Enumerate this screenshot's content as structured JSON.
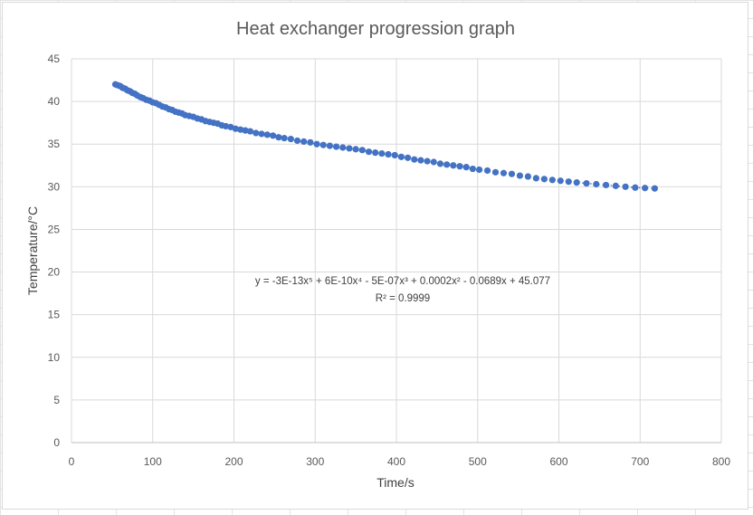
{
  "chart_data": {
    "type": "scatter",
    "title": "Heat exchanger progression graph",
    "xlabel": "Time/s",
    "ylabel": "Temperature/°C",
    "xlim": [
      0,
      800
    ],
    "ylim": [
      0,
      45
    ],
    "x_ticks": [
      "0",
      "100",
      "200",
      "300",
      "400",
      "500",
      "600",
      "700",
      "800"
    ],
    "y_ticks": [
      "0",
      "5",
      "10",
      "15",
      "20",
      "25",
      "30",
      "35",
      "40",
      "45"
    ],
    "grid": true,
    "marker_color": "#4472c4",
    "trendline": {
      "type": "polynomial",
      "order": 5,
      "equation": "y = -3E-13x⁵ + 6E-10x⁴ - 5E-07x³ + 0.0002x² - 0.0689x + 45.077",
      "r_squared": "R² = 0.9999",
      "line_style": "dotted"
    },
    "series": [
      {
        "points": [
          [
            54,
            42.0
          ],
          [
            57,
            41.9
          ],
          [
            60,
            41.8
          ],
          [
            63,
            41.6
          ],
          [
            66,
            41.5
          ],
          [
            69,
            41.3
          ],
          [
            72,
            41.2
          ],
          [
            75,
            41.0
          ],
          [
            78,
            40.9
          ],
          [
            81,
            40.7
          ],
          [
            85,
            40.5
          ],
          [
            88,
            40.4
          ],
          [
            92,
            40.2
          ],
          [
            96,
            40.1
          ],
          [
            100,
            39.9
          ],
          [
            104,
            39.8
          ],
          [
            108,
            39.6
          ],
          [
            112,
            39.4
          ],
          [
            116,
            39.3
          ],
          [
            120,
            39.1
          ],
          [
            124,
            39.0
          ],
          [
            128,
            38.8
          ],
          [
            132,
            38.7
          ],
          [
            136,
            38.6
          ],
          [
            140,
            38.4
          ],
          [
            145,
            38.3
          ],
          [
            150,
            38.2
          ],
          [
            155,
            38.0
          ],
          [
            160,
            37.9
          ],
          [
            165,
            37.7
          ],
          [
            170,
            37.6
          ],
          [
            175,
            37.5
          ],
          [
            180,
            37.4
          ],
          [
            185,
            37.2
          ],
          [
            190,
            37.1
          ],
          [
            196,
            37.0
          ],
          [
            202,
            36.8
          ],
          [
            208,
            36.7
          ],
          [
            214,
            36.6
          ],
          [
            220,
            36.5
          ],
          [
            227,
            36.3
          ],
          [
            234,
            36.2
          ],
          [
            241,
            36.1
          ],
          [
            248,
            36.0
          ],
          [
            255,
            35.8
          ],
          [
            262,
            35.7
          ],
          [
            270,
            35.6
          ],
          [
            278,
            35.4
          ],
          [
            286,
            35.3
          ],
          [
            294,
            35.2
          ],
          [
            302,
            35.0
          ],
          [
            310,
            34.9
          ],
          [
            318,
            34.8
          ],
          [
            326,
            34.7
          ],
          [
            334,
            34.6
          ],
          [
            342,
            34.5
          ],
          [
            350,
            34.4
          ],
          [
            358,
            34.3
          ],
          [
            366,
            34.1
          ],
          [
            374,
            34.0
          ],
          [
            382,
            33.9
          ],
          [
            390,
            33.8
          ],
          [
            398,
            33.7
          ],
          [
            406,
            33.5
          ],
          [
            414,
            33.4
          ],
          [
            422,
            33.2
          ],
          [
            430,
            33.1
          ],
          [
            438,
            33.0
          ],
          [
            446,
            32.9
          ],
          [
            454,
            32.7
          ],
          [
            462,
            32.6
          ],
          [
            470,
            32.5
          ],
          [
            478,
            32.4
          ],
          [
            486,
            32.3
          ],
          [
            494,
            32.1
          ],
          [
            502,
            32.0
          ],
          [
            512,
            31.9
          ],
          [
            522,
            31.7
          ],
          [
            532,
            31.6
          ],
          [
            542,
            31.5
          ],
          [
            552,
            31.3
          ],
          [
            562,
            31.2
          ],
          [
            572,
            31.0
          ],
          [
            582,
            30.9
          ],
          [
            592,
            30.8
          ],
          [
            602,
            30.7
          ],
          [
            612,
            30.6
          ],
          [
            622,
            30.5
          ],
          [
            634,
            30.4
          ],
          [
            646,
            30.3
          ],
          [
            658,
            30.2
          ],
          [
            670,
            30.1
          ],
          [
            682,
            30.0
          ],
          [
            694,
            29.9
          ],
          [
            706,
            29.85
          ],
          [
            718,
            29.8
          ]
        ]
      }
    ]
  }
}
